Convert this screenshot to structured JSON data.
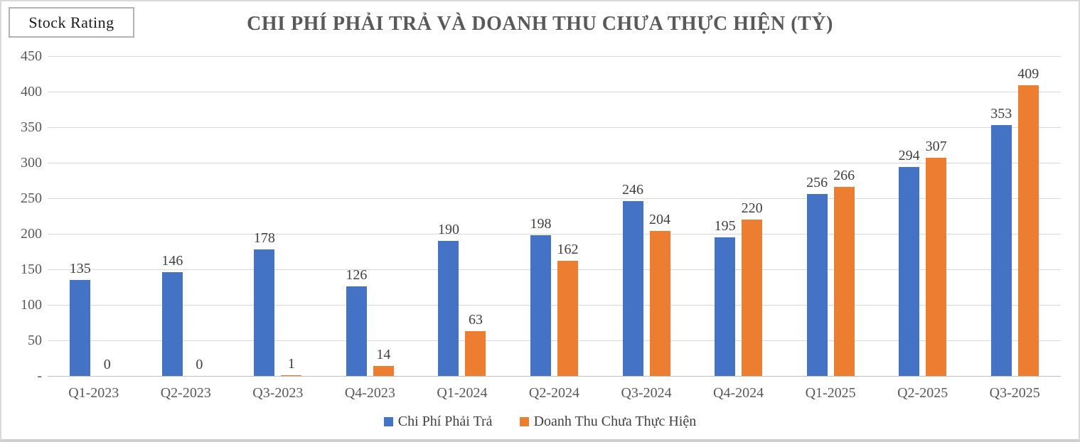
{
  "badge": {
    "label": "Stock Rating"
  },
  "chart_data": {
    "type": "bar",
    "title": "CHI PHÍ PHẢI TRẢ VÀ DOANH THU CHƯA THỰC HIỆN (TỶ)",
    "categories": [
      "Q1-2023",
      "Q2-2023",
      "Q3-2023",
      "Q4-2023",
      "Q1-2024",
      "Q2-2024",
      "Q3-2024",
      "Q4-2024",
      "Q1-2025",
      "Q2-2025",
      "Q3-2025"
    ],
    "series": [
      {
        "name": "Chi Phí Phải Trả",
        "color": "#4472C4",
        "values": [
          135,
          146,
          178,
          126,
          190,
          198,
          246,
          195,
          256,
          294,
          353
        ]
      },
      {
        "name": "Doanh Thu Chưa Thực Hiện",
        "color": "#ED7D31",
        "values": [
          0,
          0,
          1,
          14,
          63,
          162,
          204,
          220,
          266,
          307,
          409
        ]
      }
    ],
    "xlabel": "",
    "ylabel": "",
    "ylim": [
      0,
      450
    ],
    "ytick_step": 50,
    "ytick_zero_label": "-",
    "grid": true,
    "data_labels": true,
    "legend_position": "bottom"
  },
  "colors": {
    "series_blue": "#4472C4",
    "series_orange": "#ED7D31",
    "gridline": "#d9d9d9",
    "axis_line": "#bfbfbf",
    "title_text": "#595959",
    "tick_text": "#595959",
    "label_text": "#404040",
    "frame_border": "#d9d9d9"
  }
}
